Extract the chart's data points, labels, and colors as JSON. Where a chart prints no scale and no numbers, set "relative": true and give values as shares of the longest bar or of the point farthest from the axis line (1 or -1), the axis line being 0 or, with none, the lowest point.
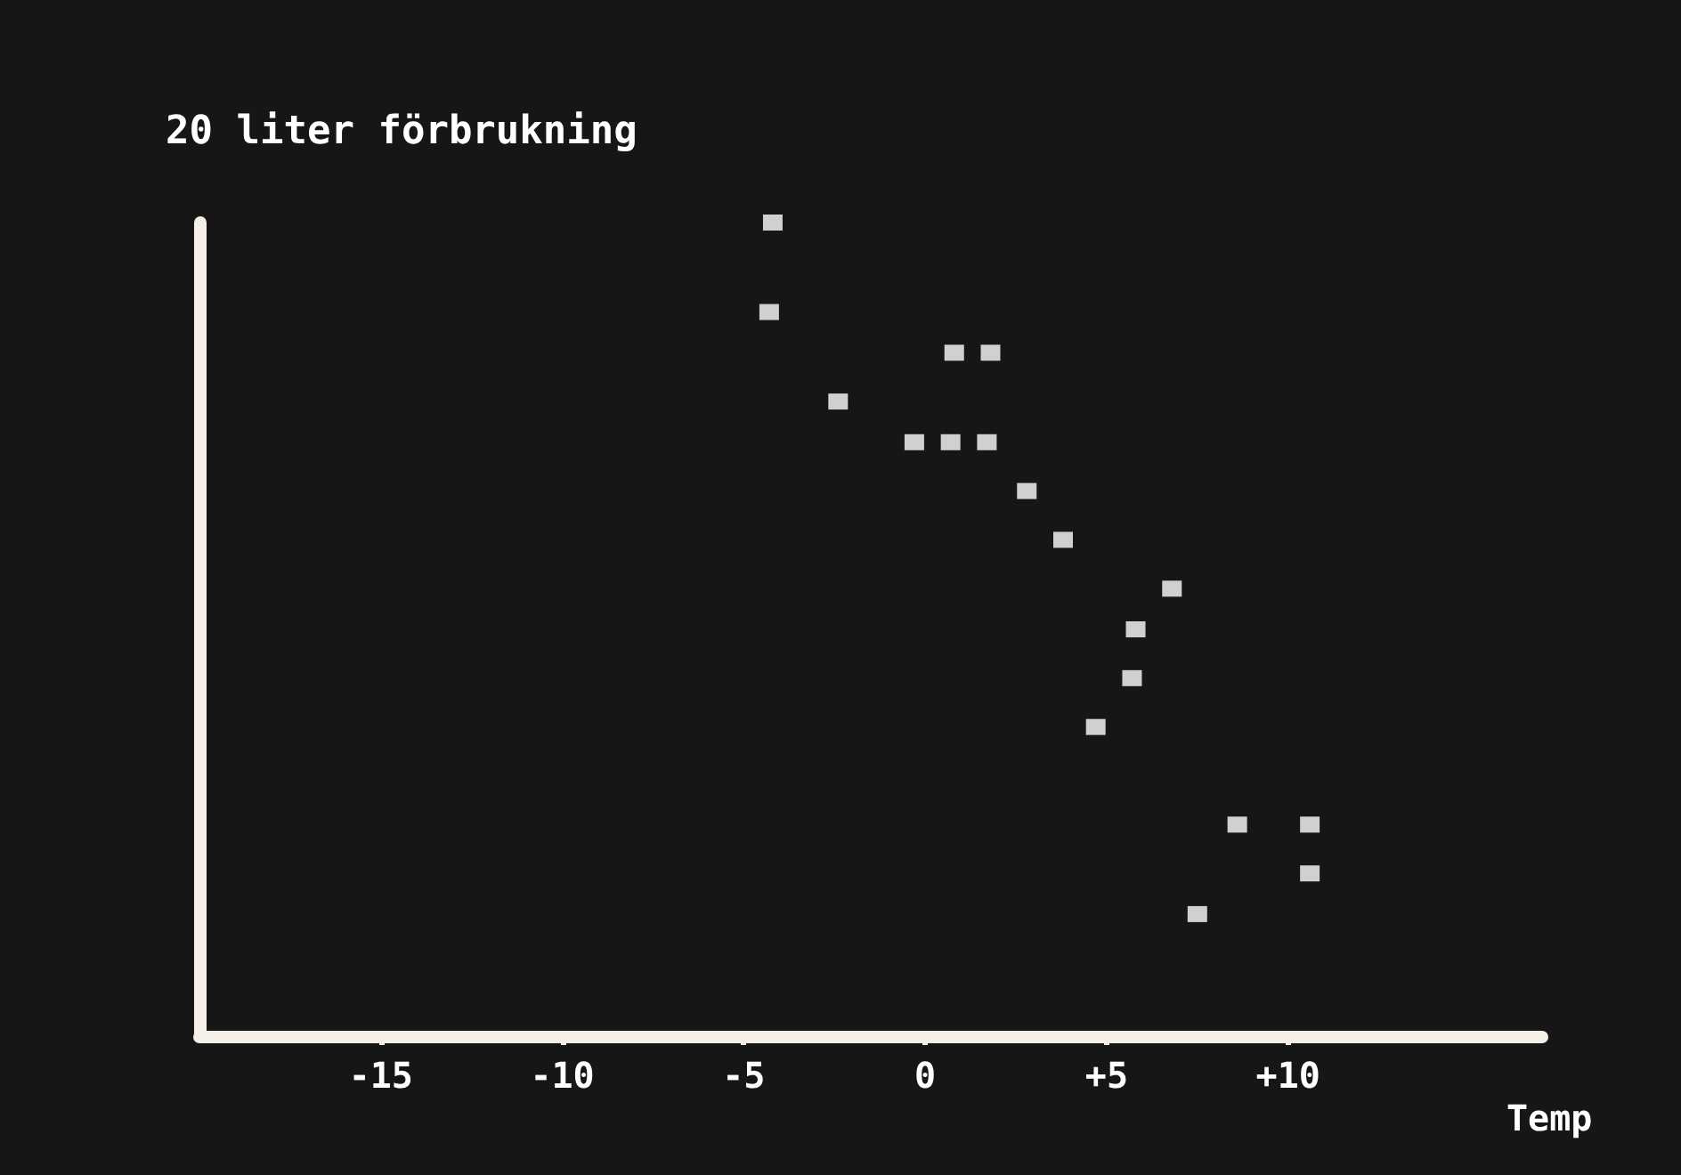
{
  "chart_data": {
    "type": "scatter",
    "title": "20 liter förbrukning",
    "xlabel": "Temp",
    "relative": true,
    "marker": "square",
    "grid": false,
    "xlim": [
      -20,
      17
    ],
    "xticks": [
      {
        "value": -15,
        "label": "-15"
      },
      {
        "value": -10,
        "label": "-10"
      },
      {
        "value": -5,
        "label": "-5"
      },
      0,
      {
        "value": 5,
        "label": "+5"
      },
      {
        "value": 10,
        "label": "+10"
      }
    ],
    "series": [
      {
        "color": "#ffffff",
        "x": [
          -4.2,
          -4.3,
          -2.4,
          0.8,
          1.8,
          -0.3,
          0.7,
          1.7,
          2.8,
          3.8,
          6.8,
          5.8,
          5.7,
          4.7,
          8.6,
          10.6,
          10.6,
          7.5
        ],
        "values": [
          1,
          0.89,
          0.78,
          0.84,
          0.84,
          0.73,
          0.73,
          0.73,
          0.67,
          0.61,
          0.55,
          0.5,
          0.44,
          0.38,
          0.26,
          0.26,
          0.2,
          0.15
        ]
      }
    ]
  }
}
